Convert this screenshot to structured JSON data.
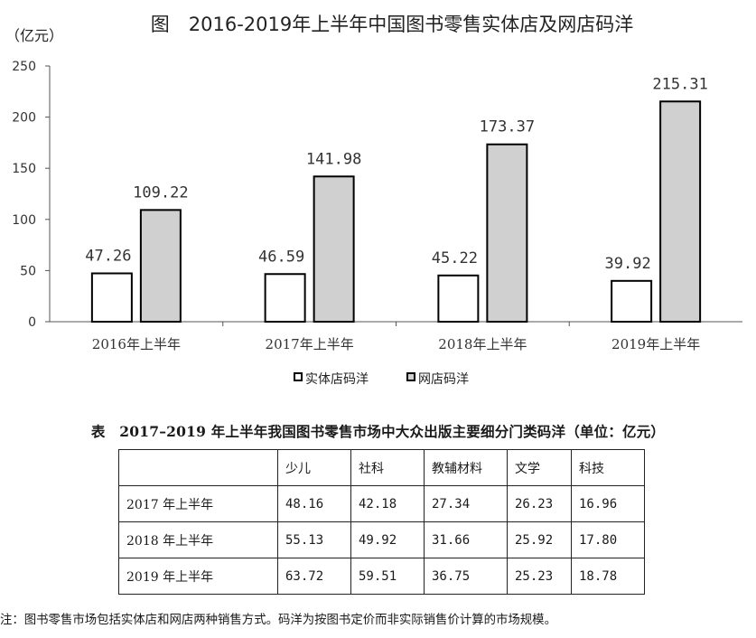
{
  "chart_data": {
    "type": "bar",
    "title": "图　2016-2019年上半年中国图书零售实体店及网店码洋",
    "ylabel": "（亿元）",
    "categories": [
      "2016年上半年",
      "2017年上半年",
      "2018年上半年",
      "2019年上半年"
    ],
    "series": [
      {
        "name": "实体店码洋",
        "values": [
          47.26,
          46.59,
          45.22,
          39.92
        ],
        "value_labels": [
          "47.26",
          "46.59",
          "45.22",
          "39.92"
        ],
        "color": "#ffffff"
      },
      {
        "name": "网店码洋",
        "values": [
          109.22,
          141.98,
          173.37,
          215.31
        ],
        "value_labels": [
          "109.22",
          "141.98",
          "173.37",
          "215.31"
        ],
        "color": "#d0d0d0"
      }
    ],
    "ylim": [
      0,
      250
    ],
    "yticks": [
      0,
      50,
      100,
      150,
      200,
      250
    ],
    "grid": false,
    "legend_position": "bottom"
  },
  "table": {
    "title": "表　2017–2019 年上半年我国图书零售市场中大众出版主要细分门类码洋（单位：亿元）",
    "headers": [
      "",
      "少儿",
      "社科",
      "教辅材料",
      "文学",
      "科技"
    ],
    "rows": [
      {
        "label": "2017 年上半年",
        "cells": [
          "48.16",
          "42.18",
          "27.34",
          "26.23",
          "16.96"
        ]
      },
      {
        "label": "2018 年上半年",
        "cells": [
          "55.13",
          "49.92",
          "31.66",
          "25.92",
          "17.80"
        ]
      },
      {
        "label": "2019 年上半年",
        "cells": [
          "63.72",
          "59.51",
          "36.75",
          "25.23",
          "18.78"
        ]
      }
    ]
  },
  "note": "注：图书零售市场包括实体店和网店两种销售方式。码洋为按图书定价而非实际销售价计算的市场规模。"
}
